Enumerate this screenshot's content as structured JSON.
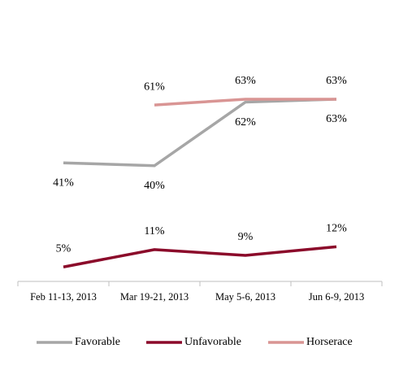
{
  "chart_data": {
    "type": "line",
    "categories": [
      "Feb 11-13, 2013",
      "Mar 19-21, 2013",
      "May 5-6, 2013",
      "Jun 6-9, 2013"
    ],
    "series": [
      {
        "name": "Favorable",
        "color": "#a6a6a6",
        "values": [
          41,
          40,
          62,
          63
        ],
        "value_labels": [
          "41%",
          "40%",
          "62%",
          "63%"
        ]
      },
      {
        "name": "Unfavorable",
        "color": "#8b0a2a",
        "values": [
          5,
          11,
          9,
          12
        ],
        "value_labels": [
          "5%",
          "11%",
          "9%",
          "12%"
        ]
      },
      {
        "name": "Horserace",
        "color": "#d99594",
        "values": [
          null,
          61,
          63,
          63
        ],
        "value_labels": [
          null,
          "61%",
          "63%",
          "63%"
        ]
      }
    ],
    "ylim": [
      0,
      90
    ],
    "legend": "bottom"
  }
}
